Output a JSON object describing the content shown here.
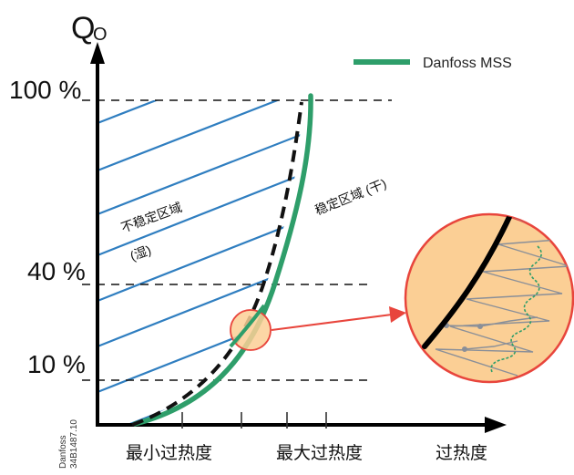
{
  "axis": {
    "y_title": "Q",
    "y_title_sub": "O",
    "y_ticks": [
      "100 %",
      "40 %",
      "10 %"
    ],
    "x_ticks": [
      "最小过热度",
      "最大过热度",
      "过热度"
    ]
  },
  "legend": {
    "label": "Danfoss MSS",
    "color": "#2e9e6a"
  },
  "regions": {
    "unstable_line1": "不稳定区域",
    "unstable_line2": "(湿)",
    "stable": "稳定区域 (干)"
  },
  "watermark": {
    "line1": "Danfoss",
    "line2": "34B1487.10"
  },
  "colors": {
    "hatch": "#2f7ec0",
    "mss_curve": "#2e9e6a",
    "zoom_fill": "#fbcf95",
    "zoom_border": "#e8453c",
    "arrow": "#e8453c"
  }
}
